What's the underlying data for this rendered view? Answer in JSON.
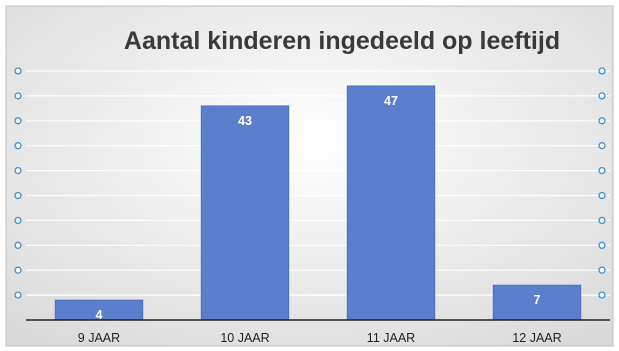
{
  "chart_data": {
    "type": "bar",
    "title": "Aantal kinderen ingedeeld op leeftijd",
    "categories": [
      "9 JAAR",
      "10 JAAR",
      "11 JAAR",
      "12 JAAR"
    ],
    "values": [
      4,
      43,
      47,
      7
    ],
    "xlabel": "",
    "ylabel": "",
    "ylim": [
      0,
      50
    ],
    "grid": true,
    "legend": "none",
    "data_labels": true,
    "bar_color": "#5b7fcc",
    "bar_edge_color": "#4a6cb8",
    "gridline_color": "#ffffff",
    "axis_color": "#222222",
    "background_gradient": [
      "#ffffff",
      "#d9d9d9"
    ],
    "frame_color": "#bfbfbf",
    "handle_color": "#3a8fd4"
  }
}
